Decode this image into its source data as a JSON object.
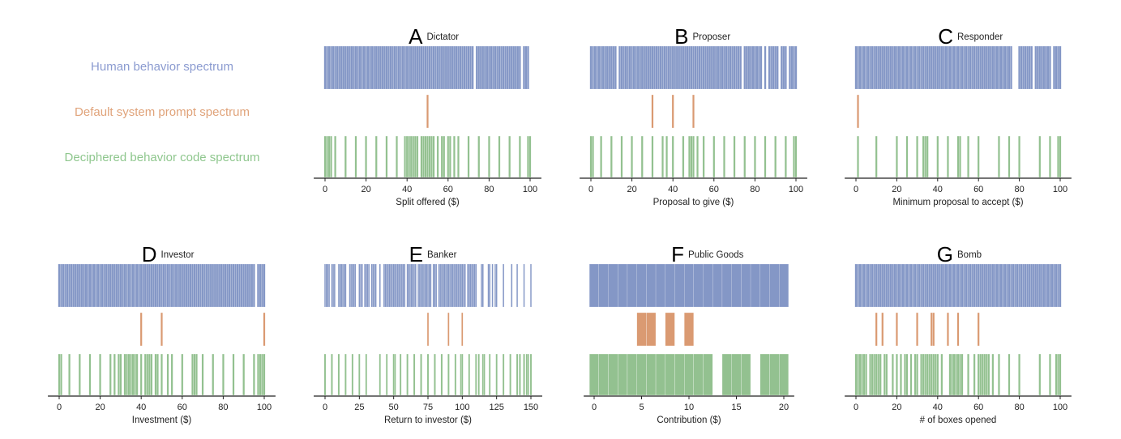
{
  "row_labels": {
    "human": "Human behavior spectrum",
    "default": "Default system prompt spectrum",
    "deciphered": "Deciphered behavior code spectrum"
  },
  "colors": {
    "human": "#8497c6",
    "default": "#da9a72",
    "deciphered": "#93c190",
    "axis": "#222222"
  },
  "chart_data": [
    {
      "type": "bar",
      "letter": "A",
      "title": "Dictator",
      "xlabel": "Split offered ($)",
      "xlim": [
        0,
        100
      ],
      "ticks": [
        0,
        20,
        40,
        60,
        80,
        100
      ],
      "human_ranges": [
        [
          0,
          72
        ],
        [
          74,
          95
        ],
        [
          97,
          99
        ]
      ],
      "default": [
        50
      ],
      "deciphered": [
        0,
        1,
        2,
        3,
        5,
        10,
        15,
        20,
        25,
        30,
        35,
        39,
        40,
        41,
        42,
        43,
        44,
        45,
        47,
        48,
        49,
        50,
        51,
        52,
        53,
        55,
        57,
        58,
        60,
        61,
        63,
        65,
        70,
        75,
        80,
        85,
        90,
        95,
        99,
        100
      ]
    },
    {
      "type": "bar",
      "letter": "B",
      "title": "Proposer",
      "xlabel": "Proposal to give ($)",
      "xlim": [
        0,
        100
      ],
      "ticks": [
        0,
        20,
        40,
        60,
        80,
        100
      ],
      "human_ranges": [
        [
          0,
          12
        ],
        [
          14,
          73
        ],
        [
          75,
          83
        ],
        [
          85,
          85
        ],
        [
          87,
          91
        ],
        [
          93,
          95
        ],
        [
          97,
          100
        ]
      ],
      "default": [
        30,
        40,
        50
      ],
      "deciphered": [
        0,
        1,
        5,
        10,
        15,
        20,
        25,
        30,
        35,
        37,
        40,
        45,
        48,
        49,
        50,
        52,
        55,
        60,
        65,
        70,
        75,
        80,
        85,
        90,
        95,
        99,
        100
      ]
    },
    {
      "type": "bar",
      "letter": "C",
      "title": "Responder",
      "xlabel": "Minimum proposal to accept ($)",
      "xlim": [
        0,
        100
      ],
      "ticks": [
        0,
        20,
        40,
        60,
        80,
        100
      ],
      "human_ranges": [
        [
          0,
          76
        ],
        [
          80,
          86
        ],
        [
          88,
          95
        ],
        [
          97,
          100
        ]
      ],
      "default": [
        1
      ],
      "deciphered": [
        1,
        10,
        20,
        25,
        30,
        33,
        34,
        35,
        40,
        45,
        50,
        51,
        55,
        60,
        70,
        75,
        80,
        90,
        95,
        99,
        100
      ]
    },
    {
      "type": "bar",
      "letter": "D",
      "title": "Investor",
      "xlabel": "Investment ($)",
      "xlim": [
        0,
        100
      ],
      "ticks": [
        0,
        20,
        40,
        60,
        80,
        100
      ],
      "human_ranges": [
        [
          0,
          95
        ],
        [
          97,
          100
        ]
      ],
      "default": [
        40,
        50,
        100
      ],
      "deciphered": [
        0,
        1,
        5,
        10,
        15,
        20,
        25,
        27,
        29,
        30,
        32,
        33,
        34,
        35,
        36,
        37,
        38,
        40,
        42,
        43,
        44,
        45,
        47,
        48,
        50,
        53,
        55,
        60,
        65,
        66,
        67,
        70,
        75,
        80,
        85,
        90,
        95,
        97,
        98,
        99,
        100
      ]
    },
    {
      "type": "bar",
      "letter": "E",
      "title": "Banker",
      "xlabel": "Return to investor ($)",
      "xlim": [
        0,
        150
      ],
      "ticks": [
        0,
        25,
        50,
        75,
        100,
        125,
        150
      ],
      "human_ranges": [
        [
          0,
          3
        ],
        [
          5,
          7
        ],
        [
          10,
          15
        ],
        [
          18,
          22
        ],
        [
          25,
          27
        ],
        [
          29,
          31
        ],
        [
          32,
          32
        ],
        [
          34,
          37
        ],
        [
          40,
          40
        ],
        [
          43,
          58
        ],
        [
          60,
          66
        ],
        [
          68,
          77
        ],
        [
          79,
          81
        ],
        [
          83,
          102
        ],
        [
          104,
          110
        ],
        [
          114,
          115
        ],
        [
          119,
          120
        ],
        [
          122,
          122
        ],
        [
          124,
          125
        ],
        [
          130,
          130
        ],
        [
          136,
          136
        ],
        [
          140,
          140
        ],
        [
          145,
          145
        ],
        [
          150,
          150
        ]
      ],
      "default": [
        75,
        90,
        100
      ],
      "deciphered": [
        0,
        5,
        10,
        15,
        20,
        25,
        30,
        40,
        45,
        50,
        51,
        55,
        60,
        65,
        70,
        75,
        80,
        85,
        90,
        95,
        99,
        100,
        105,
        110,
        112,
        115,
        116,
        120,
        125,
        130,
        135,
        140,
        142,
        145,
        147,
        148,
        150
      ]
    },
    {
      "type": "bar",
      "letter": "F",
      "title": "Public Goods",
      "xlabel": "Contribution ($)",
      "xlim": [
        0,
        20
      ],
      "ticks": [
        0,
        5,
        10,
        15,
        20
      ],
      "human_ranges": [
        [
          0,
          20
        ]
      ],
      "default": [
        5,
        6,
        8,
        10
      ],
      "deciphered": [
        0,
        1,
        2,
        3,
        4,
        5,
        6,
        7,
        8,
        9,
        10,
        11,
        12,
        14,
        15,
        16,
        18,
        19,
        20
      ]
    },
    {
      "type": "bar",
      "letter": "G",
      "title": "Bomb",
      "xlabel": "# of boxes opened",
      "xlim": [
        0,
        100
      ],
      "ticks": [
        0,
        20,
        40,
        60,
        80,
        100
      ],
      "human_ranges": [
        [
          0,
          100
        ]
      ],
      "default": [
        10,
        13,
        20,
        30,
        37,
        38,
        45,
        50,
        60
      ],
      "deciphered": [
        0,
        1,
        2,
        3,
        4,
        5,
        7,
        8,
        9,
        10,
        11,
        12,
        14,
        15,
        18,
        20,
        22,
        24,
        25,
        27,
        29,
        30,
        32,
        33,
        34,
        35,
        36,
        37,
        38,
        39,
        40,
        42,
        46,
        47,
        48,
        49,
        50,
        51,
        52,
        55,
        58,
        60,
        61,
        62,
        63,
        64,
        65,
        67,
        70,
        75,
        80,
        90,
        95,
        98,
        99,
        100
      ]
    }
  ]
}
